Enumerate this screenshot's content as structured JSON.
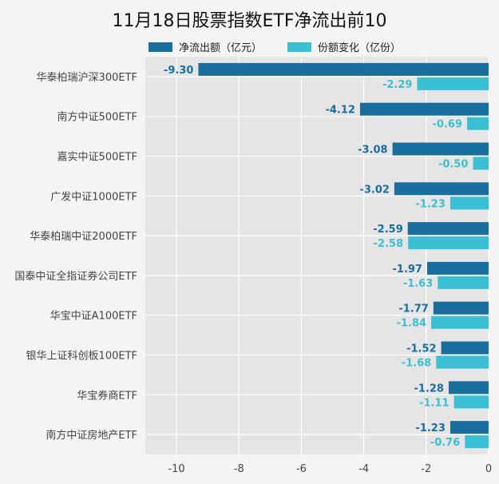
{
  "chart_data": {
    "type": "bar",
    "orientation": "horizontal",
    "title": "11月18日股票指数ETF净流出前10",
    "categories": [
      "华泰柏瑞沪深300ETF",
      "南方中证500ETF",
      "嘉实中证500ETF",
      "广发中证1000ETF",
      "华泰柏瑞中证2000ETF",
      "国泰中证全指证券公司ETF",
      "华宝中证A100ETF",
      "银华上证科创板100ETF",
      "华宝券商ETF",
      "南方中证房地产ETF"
    ],
    "series": [
      {
        "name": "净流出额（亿元）",
        "color": "#1a6e9e",
        "values": [
          -9.3,
          -4.12,
          -3.08,
          -3.02,
          -2.59,
          -1.97,
          -1.77,
          -1.52,
          -1.28,
          -1.23
        ],
        "labels": [
          "-9.30",
          "-4.12",
          "-3.08",
          "-3.02",
          "-2.59",
          "-1.97",
          "-1.77",
          "-1.52",
          "-1.28",
          "-1.23"
        ]
      },
      {
        "name": "份额变化（亿份）",
        "color": "#3bbfd3",
        "values": [
          -2.29,
          -0.69,
          -0.5,
          -1.23,
          -2.58,
          -1.63,
          -1.84,
          -1.68,
          -1.11,
          -0.76
        ],
        "labels": [
          "-2.29",
          "-0.69",
          "-0.50",
          "-1.23",
          "-2.58",
          "-1.63",
          "-1.84",
          "-1.68",
          "-1.11",
          "-0.76"
        ]
      }
    ],
    "xlim": [
      -11,
      0
    ],
    "xticks": [
      "-10",
      "-8",
      "-6",
      "-4",
      "-2",
      "0"
    ],
    "xtick_values": [
      -10,
      -8,
      -6,
      -4,
      -2,
      0
    ],
    "grid": true,
    "legend_position": "top"
  }
}
